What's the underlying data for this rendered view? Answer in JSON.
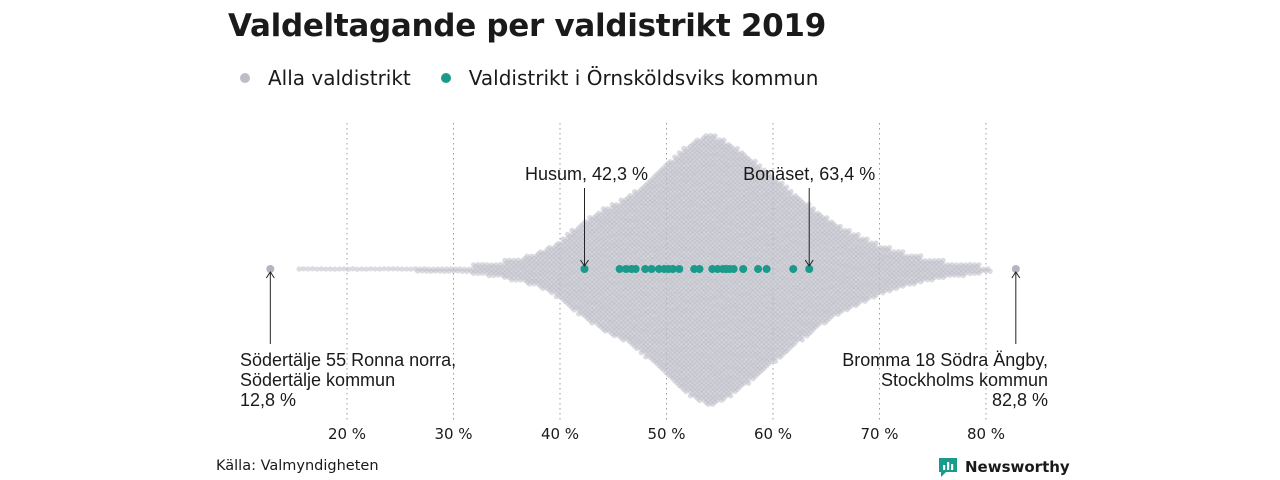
{
  "title": "Valdeltagande per valdistrikt 2019",
  "legend": [
    {
      "label": "Alla valdistrikt",
      "color": "#bdbdc9"
    },
    {
      "label": "Valdistrikt i Örnsköldsviks kommun",
      "color": "#1a9a8a"
    }
  ],
  "source": "Källa: Valmyndigheten",
  "brand": "Newsworthy",
  "chart_data": {
    "type": "scatter",
    "xlim": [
      10,
      85
    ],
    "x_ticks": [
      20,
      30,
      40,
      50,
      60,
      70,
      80
    ],
    "x_tick_labels": [
      "20 %",
      "30 %",
      "40 %",
      "50 %",
      "60 %",
      "70 %",
      "80 %"
    ],
    "grid": "vertical dotted",
    "series": [
      {
        "name": "Alla valdistrikt",
        "color": "#bdbdc9",
        "outliers": [
          12.8,
          82.8
        ],
        "distribution": "beeswarm of all districts, dense between 40 % and 70 %, peak near 54 %"
      },
      {
        "name": "Valdistrikt i Örnsköldsviks kommun",
        "color": "#1a9a8a",
        "values": [
          42.3,
          45.6,
          46.2,
          46.7,
          47.1,
          48.0,
          48.6,
          49.3,
          49.8,
          50.2,
          50.6,
          51.2,
          52.6,
          53.1,
          54.3,
          54.8,
          55.3,
          55.6,
          55.9,
          56.3,
          57.2,
          58.6,
          59.4,
          61.9,
          63.4
        ]
      }
    ],
    "annotations": [
      {
        "id": "husum",
        "lines": [
          "Husum, 42,3 %"
        ],
        "value": 42.3
      },
      {
        "id": "bonaset",
        "lines": [
          "Bonäset, 63,4 %"
        ],
        "value": 63.4
      },
      {
        "id": "sodertalje",
        "lines": [
          "Södertälje 55 Ronna norra,",
          "Södertälje kommun",
          "12,8 %"
        ],
        "value": 12.8
      },
      {
        "id": "bromma",
        "lines": [
          "Bromma 18 Södra Ängby,",
          "Stockholms kommun",
          "82,8 %"
        ],
        "value": 82.8
      }
    ]
  }
}
